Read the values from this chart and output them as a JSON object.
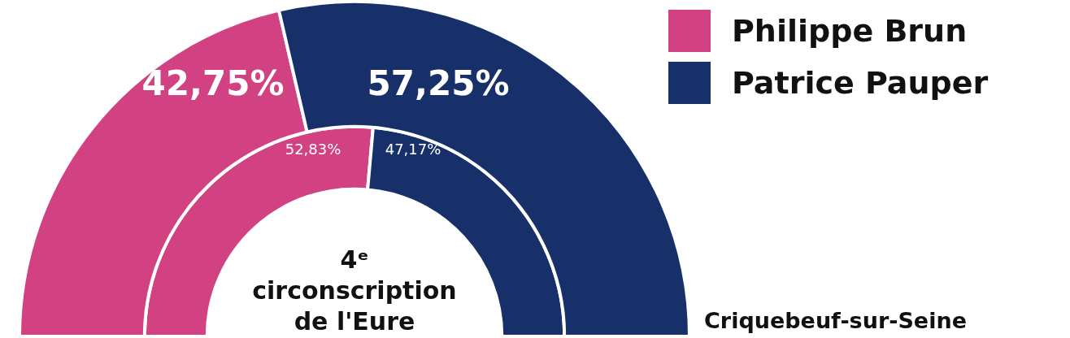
{
  "chart_data": {
    "type": "donut",
    "categories": [
      "Philippe Brun",
      "Patrice Pauper"
    ],
    "colors": [
      "#d24282",
      "#17306a"
    ],
    "legend": "top right",
    "series": [
      {
        "name": "Criquebeuf-sur-Seine",
        "values": [
          42.75,
          57.25
        ],
        "value_labels": [
          "42,75%",
          "57,25%"
        ]
      },
      {
        "name": "4ᵉ circonscription de l'Eure",
        "values": [
          52.83,
          47.17
        ],
        "value_labels": [
          "52,83%",
          "47,17%"
        ]
      }
    ]
  }
}
